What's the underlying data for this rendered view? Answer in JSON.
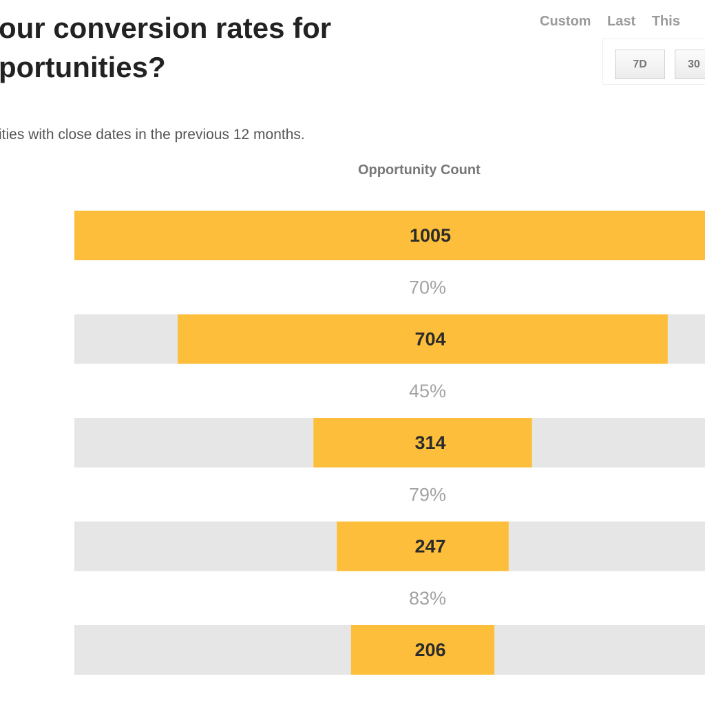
{
  "header": {
    "title_line1": "our conversion rates for",
    "title_line2": "portunities?",
    "subtitle": "ities with close dates in the previous 12 months."
  },
  "range": {
    "tabs": [
      "Custom",
      "Last",
      "This"
    ],
    "buttons": [
      "7D",
      "30"
    ]
  },
  "colors": {
    "bar": "#fdbf3b",
    "track": "#e6e6e6"
  },
  "chart_data": {
    "type": "bar",
    "orientation": "horizontal-funnel",
    "title": "Opportunity Count",
    "values": [
      1005,
      704,
      314,
      247,
      206
    ],
    "conversion_rates": [
      "70%",
      "45%",
      "79%",
      "83%"
    ]
  }
}
